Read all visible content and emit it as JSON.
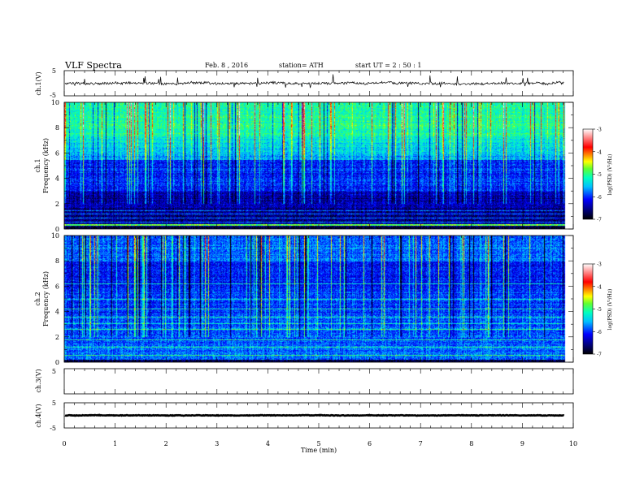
{
  "header": {
    "title": "VLF  Spectra",
    "date": "Feb. 8  , 2016",
    "station": "station= ATH",
    "start": "start  UT  =   2  : 50 : 1"
  },
  "chart_data": {
    "type": "heatmap",
    "xlabel": "Time  (min)",
    "xlim": [
      0,
      10
    ],
    "xticks": [
      "0",
      "1",
      "2",
      "3",
      "4",
      "5",
      "6",
      "7",
      "8",
      "9",
      "10"
    ],
    "panels": [
      {
        "kind": "waveform",
        "ylabel": "ch.1(V)",
        "ylim": [
          -5,
          5
        ],
        "yticks": [
          "5",
          "-5"
        ],
        "level": 0,
        "noise": 0.55
      },
      {
        "kind": "spectrogram",
        "ylabel": "ch.1",
        "ylabel2": "Frequency  (kHz)",
        "ylim": [
          0,
          10
        ],
        "yticks": [
          "0",
          "2",
          "4",
          "6",
          "8",
          "10"
        ],
        "colorbar": {
          "label": "log(PSD) (V²/Hz)",
          "ticks": [
            "-3",
            "-4",
            "-5",
            "-6",
            "-7"
          ],
          "range": [
            -7,
            -3
          ]
        }
      },
      {
        "kind": "spectrogram",
        "ylabel": "ch.2",
        "ylabel2": "Frequency  (kHz)",
        "ylim": [
          0,
          10
        ],
        "yticks": [
          "0",
          "2",
          "4",
          "6",
          "8",
          "10"
        ],
        "colorbar": {
          "label": "log(PSD) (V²/Hz)",
          "ticks": [
            "-3",
            "-4",
            "-5",
            "-6",
            "-7"
          ],
          "range": [
            -7,
            -3
          ]
        }
      },
      {
        "kind": "waveform",
        "ylabel": "ch.3(V)",
        "ylim": [
          -5,
          5
        ],
        "yticks": [
          "5"
        ],
        "level": null,
        "noise": 0
      },
      {
        "kind": "waveform",
        "ylabel": "ch.4(V)",
        "ylim": [
          -5,
          5
        ],
        "yticks": [
          "5",
          "-5"
        ],
        "level": 0,
        "noise": 0.12
      }
    ],
    "data_end_min": 9.82
  }
}
